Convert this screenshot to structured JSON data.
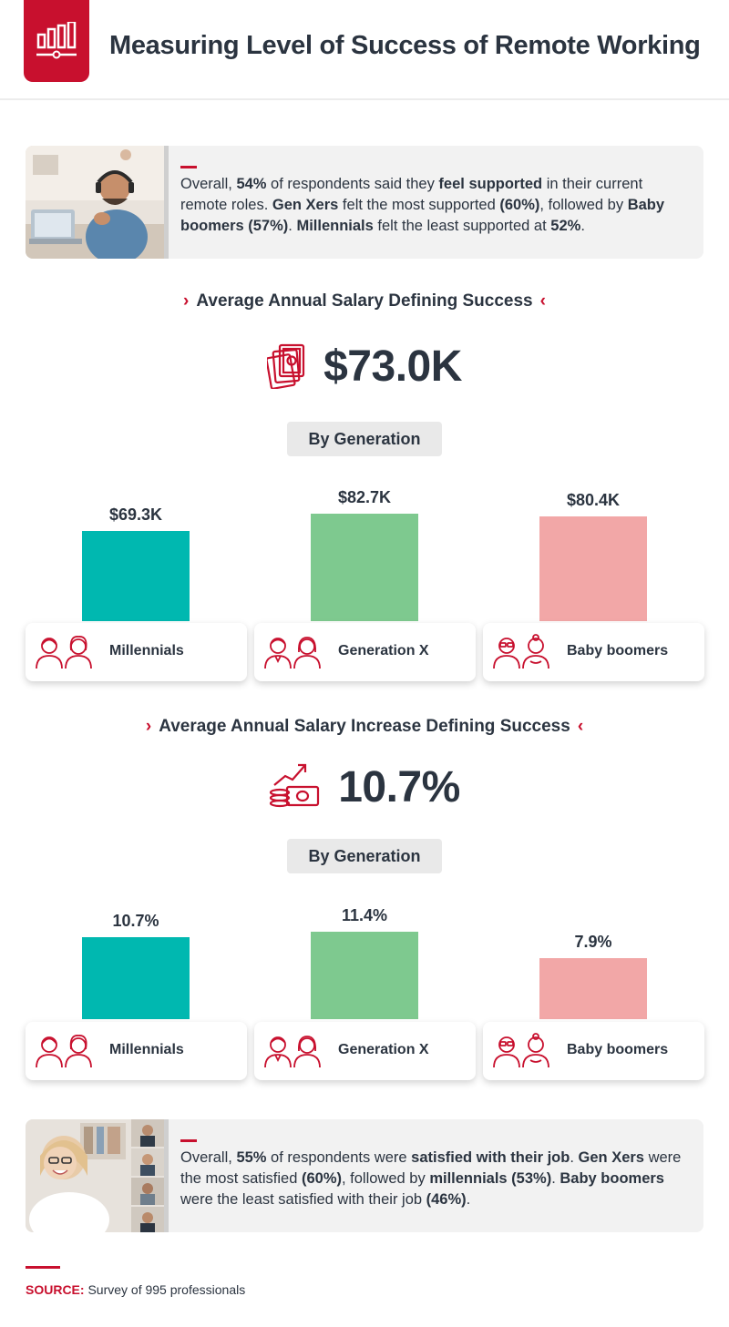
{
  "header": {
    "title": "Measuring Level of Success of Remote Working",
    "logo_icon": "bar-chart-icon"
  },
  "info_top": {
    "photo_icon": "man-with-headset-photo",
    "parts": [
      {
        "text": "Overall, ",
        "bold": false
      },
      {
        "text": "54%",
        "bold": true
      },
      {
        "text": " of respondents said they ",
        "bold": false
      },
      {
        "text": "feel supported",
        "bold": true
      },
      {
        "text": " in their current remote roles. ",
        "bold": false
      },
      {
        "text": "Gen Xers",
        "bold": true
      },
      {
        "text": " felt the most supported ",
        "bold": false
      },
      {
        "text": "(60%)",
        "bold": true
      },
      {
        "text": ", followed by ",
        "bold": false
      },
      {
        "text": "Baby boomers (57%)",
        "bold": true
      },
      {
        "text": ". ",
        "bold": false
      },
      {
        "text": "Millennials",
        "bold": true
      },
      {
        "text": " felt the least supported at ",
        "bold": false
      },
      {
        "text": "52%",
        "bold": true
      },
      {
        "text": ".",
        "bold": false
      }
    ]
  },
  "salary_section": {
    "title": "Average Annual Salary Defining Success",
    "chev_left": "›",
    "chev_right": "‹",
    "kpi_icon": "money-stack-icon",
    "kpi_value": "$73.0K",
    "by_label": "By Generation"
  },
  "increase_section": {
    "title": "Average Annual Salary Increase Defining Success",
    "chev_left": "›",
    "chev_right": "‹",
    "kpi_icon": "money-growth-icon",
    "kpi_value": "10.7%",
    "by_label": "By Generation"
  },
  "colors": {
    "millennials": "#00b8b0",
    "generation_x": "#7ec98f",
    "baby_boomers": "#f2a7a7",
    "accent": "#c8102e"
  },
  "chart_data": [
    {
      "type": "bar",
      "categories": [
        "Millennials",
        "Generation X",
        "Baby boomers"
      ],
      "values": [
        69.3,
        82.7,
        80.4
      ],
      "value_labels": [
        "$69.3K",
        "$82.7K",
        "$80.4K"
      ],
      "unit": "$K",
      "ylim": [
        0,
        82.7
      ],
      "grid": false,
      "icons": [
        "millennials-people-icon",
        "generation-x-people-icon",
        "baby-boomers-people-icon"
      ]
    },
    {
      "type": "bar",
      "categories": [
        "Millennials",
        "Generation X",
        "Baby boomers"
      ],
      "values": [
        10.7,
        11.4,
        7.9
      ],
      "value_labels": [
        "10.7%",
        "11.4%",
        "7.9%"
      ],
      "unit": "%",
      "ylim": [
        0,
        11.4
      ],
      "grid": false,
      "icons": [
        "millennials-people-icon",
        "generation-x-people-icon",
        "baby-boomers-people-icon"
      ]
    }
  ],
  "info_bottom": {
    "photo_icon": "woman-video-call-photo",
    "parts": [
      {
        "text": "Overall, ",
        "bold": false
      },
      {
        "text": "55%",
        "bold": true
      },
      {
        "text": " of respondents were ",
        "bold": false
      },
      {
        "text": "satisfied with their job",
        "bold": true
      },
      {
        "text": ". ",
        "bold": false
      },
      {
        "text": "Gen Xers",
        "bold": true
      },
      {
        "text": " were the most satisfied ",
        "bold": false
      },
      {
        "text": "(60%)",
        "bold": true
      },
      {
        "text": ", followed by ",
        "bold": false
      },
      {
        "text": "millennials (53%)",
        "bold": true
      },
      {
        "text": ". ",
        "bold": false
      },
      {
        "text": "Baby boomers",
        "bold": true
      },
      {
        "text": " were the least satisfied with their job ",
        "bold": false
      },
      {
        "text": "(46%)",
        "bold": true
      },
      {
        "text": ".",
        "bold": false
      }
    ]
  },
  "footer": {
    "source_key": "SOURCE:",
    "source_text": " Survey of 995 professionals"
  }
}
